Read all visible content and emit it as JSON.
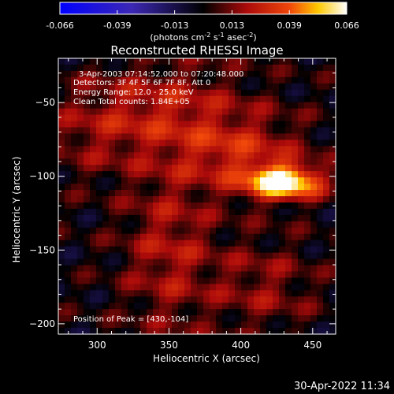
{
  "chart_data": {
    "type": "heatmap",
    "title": "Reconstructed RHESSI Image",
    "xlabel": "Heliocentric X (arcsec)",
    "ylabel": "Heliocentric Y (arcsec)",
    "xlim": [
      273,
      466
    ],
    "ylim": [
      -207,
      -20
    ],
    "x_ticks": [
      300,
      350,
      400,
      450
    ],
    "y_ticks": [
      -50,
      -100,
      -150,
      -200
    ],
    "colorbar": {
      "ticks": [
        "-0.066",
        "-0.039",
        "-0.013",
        "0.013",
        "0.039",
        "0.066"
      ],
      "range": [
        -0.066,
        0.066
      ],
      "unit_label": "(photons cm",
      "unit_exp1": "-2",
      "unit_mid": " s",
      "unit_exp2": "-1",
      "unit_mid2": " asec",
      "unit_exp3": "-2",
      "unit_end": ")"
    },
    "annotations": [
      "3-Apr-2003 07:14:52.000 to 07:20:48.000",
      "Detectors: 3F 4F 5F 6F 7F 8F, Att 0",
      "Energy Range: 12.0 - 25.0 keV",
      "Clean     Total counts: 1.84E+05"
    ],
    "peak_label": "Position of Peak = [430,-104]",
    "peak": {
      "x": 430,
      "y": -104,
      "value": 0.066
    },
    "sources": [
      {
        "x": 430,
        "y": -104,
        "sx": 18,
        "sy": 8,
        "amp": 0.066
      },
      {
        "x": 400,
        "y": -85,
        "sx": 30,
        "sy": 18,
        "amp": 0.024
      },
      {
        "x": 345,
        "y": -55,
        "sx": 40,
        "sy": 22,
        "amp": 0.022
      },
      {
        "x": 350,
        "y": -150,
        "sx": 22,
        "sy": 40,
        "amp": 0.02
      },
      {
        "x": 415,
        "y": -175,
        "sx": 25,
        "sy": 22,
        "amp": 0.015
      },
      {
        "x": 295,
        "y": -75,
        "sx": 25,
        "sy": 20,
        "amp": 0.01
      }
    ],
    "footer": "30-Apr-2022 11:34"
  }
}
